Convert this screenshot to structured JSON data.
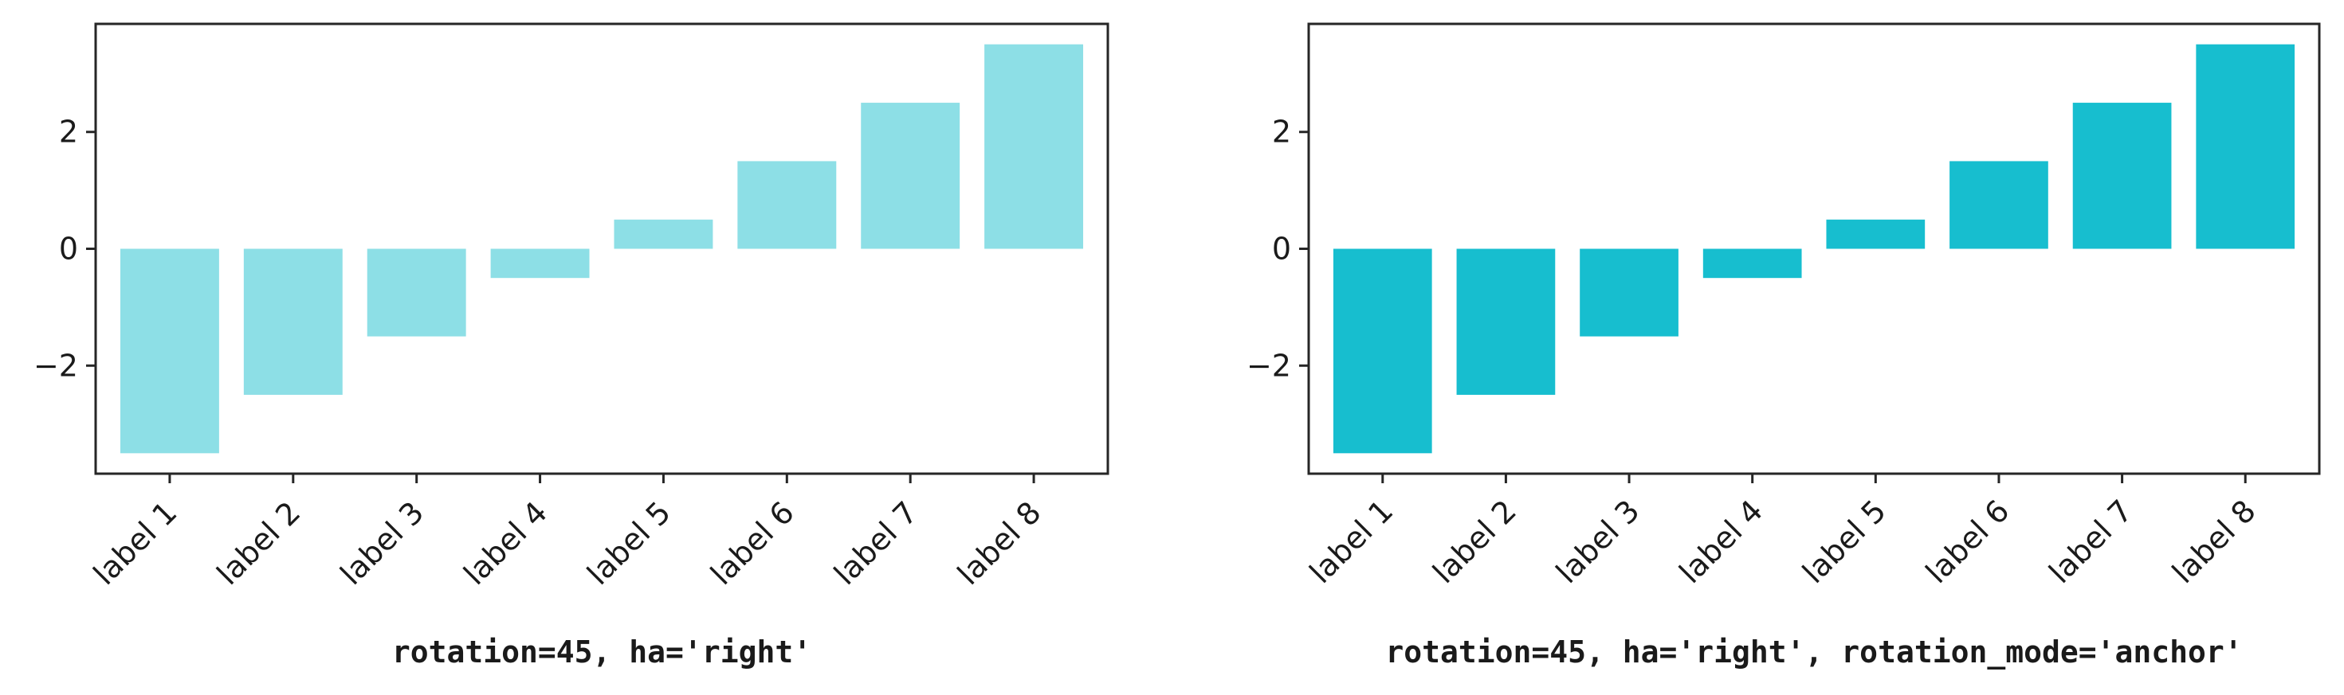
{
  "chart_data": [
    {
      "type": "bar",
      "categories": [
        "label 1",
        "label 2",
        "label 3",
        "label 4",
        "label 5",
        "label 6",
        "label 7",
        "label 8"
      ],
      "values": [
        -3.5,
        -2.5,
        -1.5,
        -0.5,
        0.5,
        1.5,
        2.5,
        3.5
      ],
      "yticks": [
        -2,
        0,
        2
      ],
      "ytick_labels": [
        "−2",
        "0",
        "2"
      ],
      "ylim": [
        -3.85,
        3.85
      ],
      "xlabel": "rotation=45, ha='right'",
      "ylabel": "",
      "bar_color": "#8ddfe6",
      "tick_rotation": -45,
      "grid": false
    },
    {
      "type": "bar",
      "categories": [
        "label 1",
        "label 2",
        "label 3",
        "label 4",
        "label 5",
        "label 6",
        "label 7",
        "label 8"
      ],
      "values": [
        -3.5,
        -2.5,
        -1.5,
        -0.5,
        0.5,
        1.5,
        2.5,
        3.5
      ],
      "yticks": [
        -2,
        0,
        2
      ],
      "ytick_labels": [
        "−2",
        "0",
        "2"
      ],
      "ylim": [
        -3.85,
        3.85
      ],
      "xlabel": "rotation=45, ha='right', rotation_mode='anchor'",
      "ylabel": "",
      "bar_color": "#17becf",
      "tick_rotation": -45,
      "grid": false
    }
  ]
}
